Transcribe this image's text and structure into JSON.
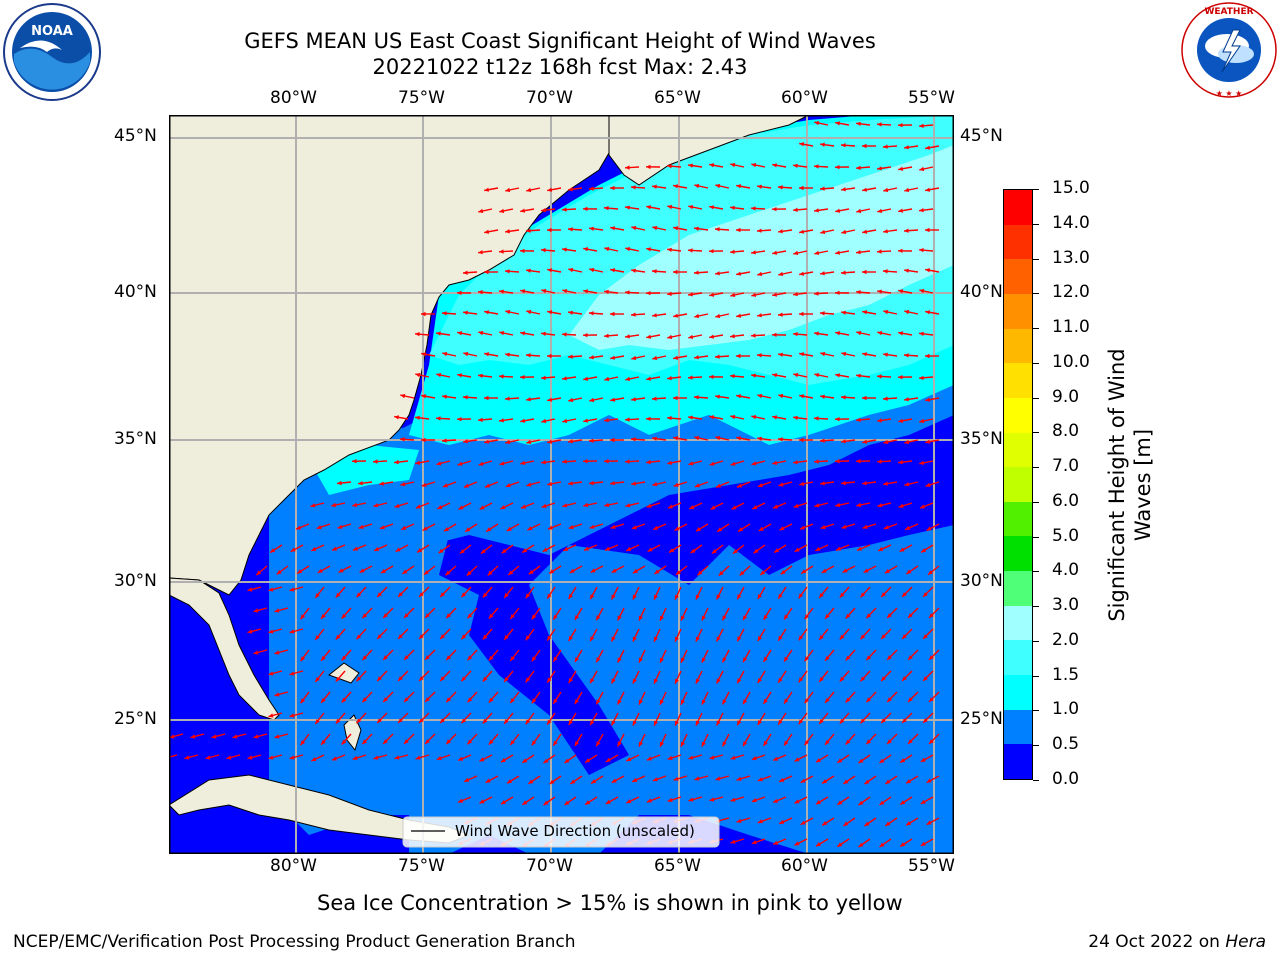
{
  "header": {
    "title_line1": "GEFS MEAN US East Coast Significant Height of Wind Waves",
    "title_line2": "20221022 t12z 168h fcst   Max: 2.43"
  },
  "logos": {
    "left": {
      "text": "NOAA",
      "ring_text": "NATIONAL OCEANIC AND ATMOSPHERIC ADMINISTRATION · U.S. DEPARTMENT OF COMMERCE"
    },
    "right": {
      "ring_text": "NATIONAL WEATHER SERVICE"
    }
  },
  "map": {
    "lon_ticks": [
      "80°W",
      "75°W",
      "70°W",
      "65°W",
      "60°W",
      "55°W"
    ],
    "lat_ticks": [
      "45°N",
      "40°N",
      "35°N",
      "30°N",
      "25°N"
    ],
    "legend_label": "Wind Wave Direction (unscaled)",
    "arrow_color": "#ff0000",
    "land_color": "#efeddc"
  },
  "colorbar": {
    "label": "Significant Height of Wind Waves [m]",
    "label_line1": "Significant Height of Wind",
    "label_line2": "Waves [m]",
    "ticks": [
      "15.0",
      "14.0",
      "13.0",
      "12.0",
      "11.0",
      "10.0",
      "9.0",
      "8.0",
      "7.0",
      "6.0",
      "5.0",
      "4.0",
      "3.0",
      "2.0",
      "1.5",
      "1.0",
      "0.5",
      "0.0"
    ],
    "colors": [
      "#0000ff",
      "#0080ff",
      "#00ffff",
      "#40ffff",
      "#a0ffff",
      "#50ff78",
      "#00e000",
      "#50f000",
      "#c0ff00",
      "#e0ff00",
      "#ffff00",
      "#ffe000",
      "#ffb800",
      "#ff9000",
      "#ff6000",
      "#ff3000",
      "#ff0000"
    ]
  },
  "caption": "Sea Ice Concentration > 15% is shown in pink to yellow",
  "footer": {
    "left": "NCEP/EMC/Verification Post Processing Product Generation Branch",
    "right_prefix": "24 Oct 2022 on ",
    "right_italic": "Hera"
  }
}
